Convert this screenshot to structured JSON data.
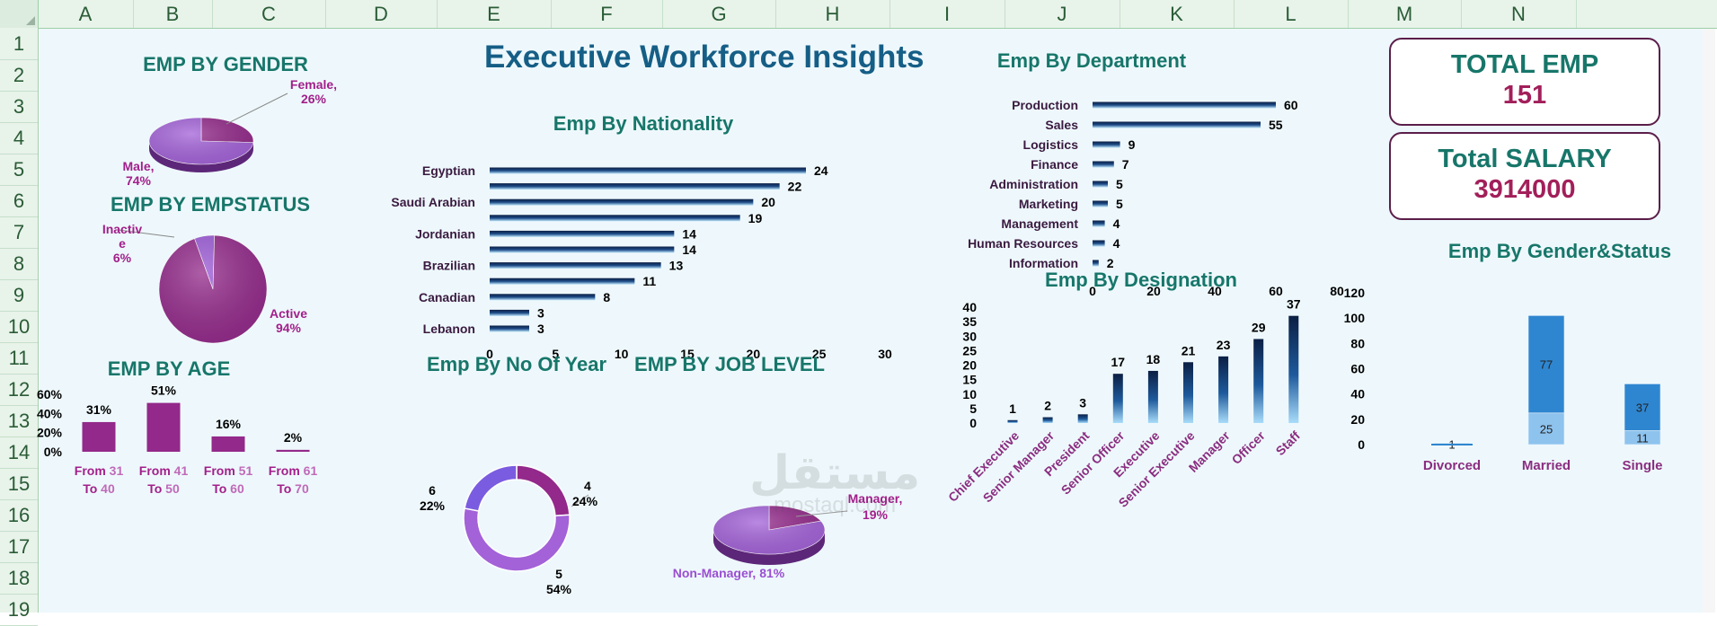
{
  "sheet": {
    "columns": [
      "A",
      "B",
      "C",
      "D",
      "E",
      "F",
      "G",
      "H",
      "I",
      "J",
      "K",
      "L",
      "M",
      "N"
    ],
    "rows": [
      "1",
      "2",
      "3",
      "4",
      "5",
      "6",
      "7",
      "8",
      "9",
      "10",
      "11",
      "12",
      "13",
      "14",
      "15",
      "16",
      "17",
      "18",
      "19"
    ]
  },
  "dashboard": {
    "title": "Executive Workforce Insights",
    "kpis": {
      "total_emp_label": "TOTAL EMP",
      "total_emp_value": "151",
      "total_salary_label": "Total SALARY",
      "total_salary_value": "3914000"
    },
    "watermark": {
      "brand": "مستقل",
      "domain": "mostaql.com"
    }
  },
  "chart_data": [
    {
      "id": "gender",
      "type": "pie",
      "title": "EMP BY GENDER",
      "labels": [
        "Female",
        "Male"
      ],
      "values": [
        26,
        74
      ],
      "label_text": [
        "Female,\n26%",
        "Male,\n74%"
      ],
      "colors": [
        "#93298a",
        "#a362d8"
      ]
    },
    {
      "id": "empstatus",
      "type": "pie",
      "title": "EMP BY EMPSTATUS",
      "labels": [
        "Inactive",
        "Active"
      ],
      "values": [
        6,
        94
      ],
      "label_text": [
        "Inactiv\ne\n6%",
        "Active\n94%"
      ],
      "colors": [
        "#9b5ad6",
        "#93298a"
      ]
    },
    {
      "id": "age",
      "type": "bar",
      "title": "EMP BY AGE",
      "categories": [
        "From 31 To 40",
        "From 41 To 50",
        "From 51 To 60",
        "From 61 To 70"
      ],
      "category_lines": [
        [
          "From 31",
          "To 40"
        ],
        [
          "From 41",
          "To 50"
        ],
        [
          "From 51",
          "To 60"
        ],
        [
          "From 61",
          "To 70"
        ]
      ],
      "values": [
        31,
        51,
        16,
        2
      ],
      "data_labels": [
        "31%",
        "51%",
        "16%",
        "2%"
      ],
      "yticks": [
        "0%",
        "20%",
        "40%",
        "60%"
      ],
      "ylim": [
        0,
        60
      ],
      "color": "#93298a"
    },
    {
      "id": "nationality",
      "type": "bar",
      "orientation": "horizontal",
      "title": "Emp By Nationality",
      "categories": [
        "Egyptian",
        "",
        "Saudi Arabian",
        "",
        "Jordanian",
        "",
        "Brazilian",
        "",
        "Canadian",
        "",
        "Lebanon"
      ],
      "values": [
        24,
        22,
        20,
        19,
        14,
        14,
        13,
        11,
        8,
        3,
        3
      ],
      "xticks": [
        0,
        5,
        10,
        15,
        20,
        25,
        30
      ],
      "xlim": [
        0,
        30
      ],
      "color": "#0e2b56"
    },
    {
      "id": "department",
      "type": "bar",
      "orientation": "horizontal",
      "title": "Emp By Department",
      "categories": [
        "Production",
        "Sales",
        "Logistics",
        "Finance",
        "Administration",
        "Marketing",
        "Management",
        "Human Resources",
        "Information"
      ],
      "values": [
        60,
        55,
        9,
        7,
        5,
        5,
        4,
        4,
        2
      ],
      "xticks": [
        0,
        20,
        40,
        60,
        80
      ],
      "xlim": [
        0,
        80
      ],
      "color": "#0e2b56"
    },
    {
      "id": "years",
      "type": "pie",
      "subtype": "doughnut",
      "title": "Emp By No Of Year",
      "labels": [
        "4",
        "5",
        "6"
      ],
      "values": [
        24,
        54,
        22
      ],
      "label_text": [
        "4\n24%",
        "5\n54%",
        "6\n22%"
      ],
      "colors": [
        "#93298a",
        "#a362d8",
        "#7a5ce0"
      ]
    },
    {
      "id": "joblevel",
      "type": "pie",
      "title": "EMP BY JOB LEVEL",
      "labels": [
        "Manager",
        "Non-Manager"
      ],
      "values": [
        19,
        81
      ],
      "label_text": [
        "Manager,\n19%",
        "Non-Manager, 81%"
      ],
      "colors": [
        "#93298a",
        "#a362d8"
      ]
    },
    {
      "id": "designation",
      "type": "bar",
      "title": "Emp By Designation",
      "categories": [
        "Chief Executive",
        "Senior Manager",
        "President",
        "Senior Officer",
        "Executive",
        "Senior Executive",
        "Manager",
        "Officer",
        "Staff"
      ],
      "values": [
        1,
        2,
        3,
        17,
        18,
        21,
        23,
        29,
        37
      ],
      "yticks": [
        0,
        5,
        10,
        15,
        20,
        25,
        30,
        35,
        40
      ],
      "ylim": [
        0,
        40
      ],
      "color": "#0e2b56"
    },
    {
      "id": "gender_status",
      "type": "bar",
      "stacked": true,
      "title": "Emp By Gender&Status",
      "categories": [
        "Divorced",
        "Married",
        "Single"
      ],
      "series": [
        {
          "values": [
            0,
            25,
            11
          ],
          "color": "#8ec3ee"
        },
        {
          "values": [
            1,
            77,
            37
          ],
          "color": "#2f86d0"
        }
      ],
      "data_labels": [
        [
          "",
          "25",
          "11"
        ],
        [
          "1",
          "77",
          "37"
        ]
      ],
      "yticks": [
        0,
        20,
        40,
        60,
        80,
        100,
        120
      ],
      "ylim": [
        0,
        120
      ]
    }
  ]
}
